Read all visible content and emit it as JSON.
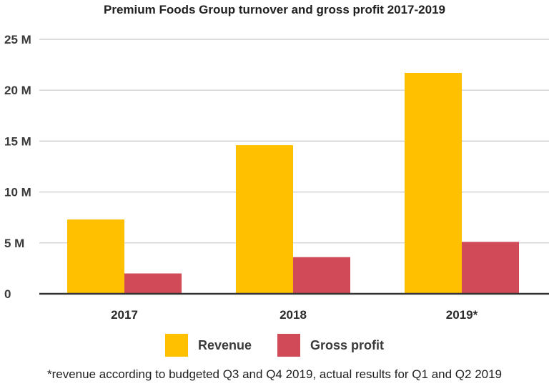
{
  "colors": {
    "revenue": "#ffc000",
    "gross_profit": "#d04a57",
    "grid": "#c8c8c8",
    "axis": "#333333"
  },
  "chart_data": {
    "type": "bar",
    "title": "Premium Foods Group turnover and gross profit 2017-2019",
    "categories": [
      "2017",
      "2018",
      "2019*"
    ],
    "series": [
      {
        "name": "Revenue",
        "values": [
          7.3,
          14.6,
          21.7
        ]
      },
      {
        "name": "Gross profit",
        "values": [
          2.0,
          3.6,
          5.1
        ]
      }
    ],
    "ylim": [
      0,
      25
    ],
    "yticks": [
      0,
      5,
      10,
      15,
      20,
      25
    ],
    "ytick_labels": [
      "0",
      "5 M",
      "10 M",
      "15 M",
      "20 M",
      "25 M"
    ],
    "xlabel": "",
    "ylabel": "",
    "grid": true,
    "legend_position": "bottom"
  },
  "footnote": "*revenue according to budgeted Q3 and Q4 2019, actual results for Q1 and Q2 2019"
}
